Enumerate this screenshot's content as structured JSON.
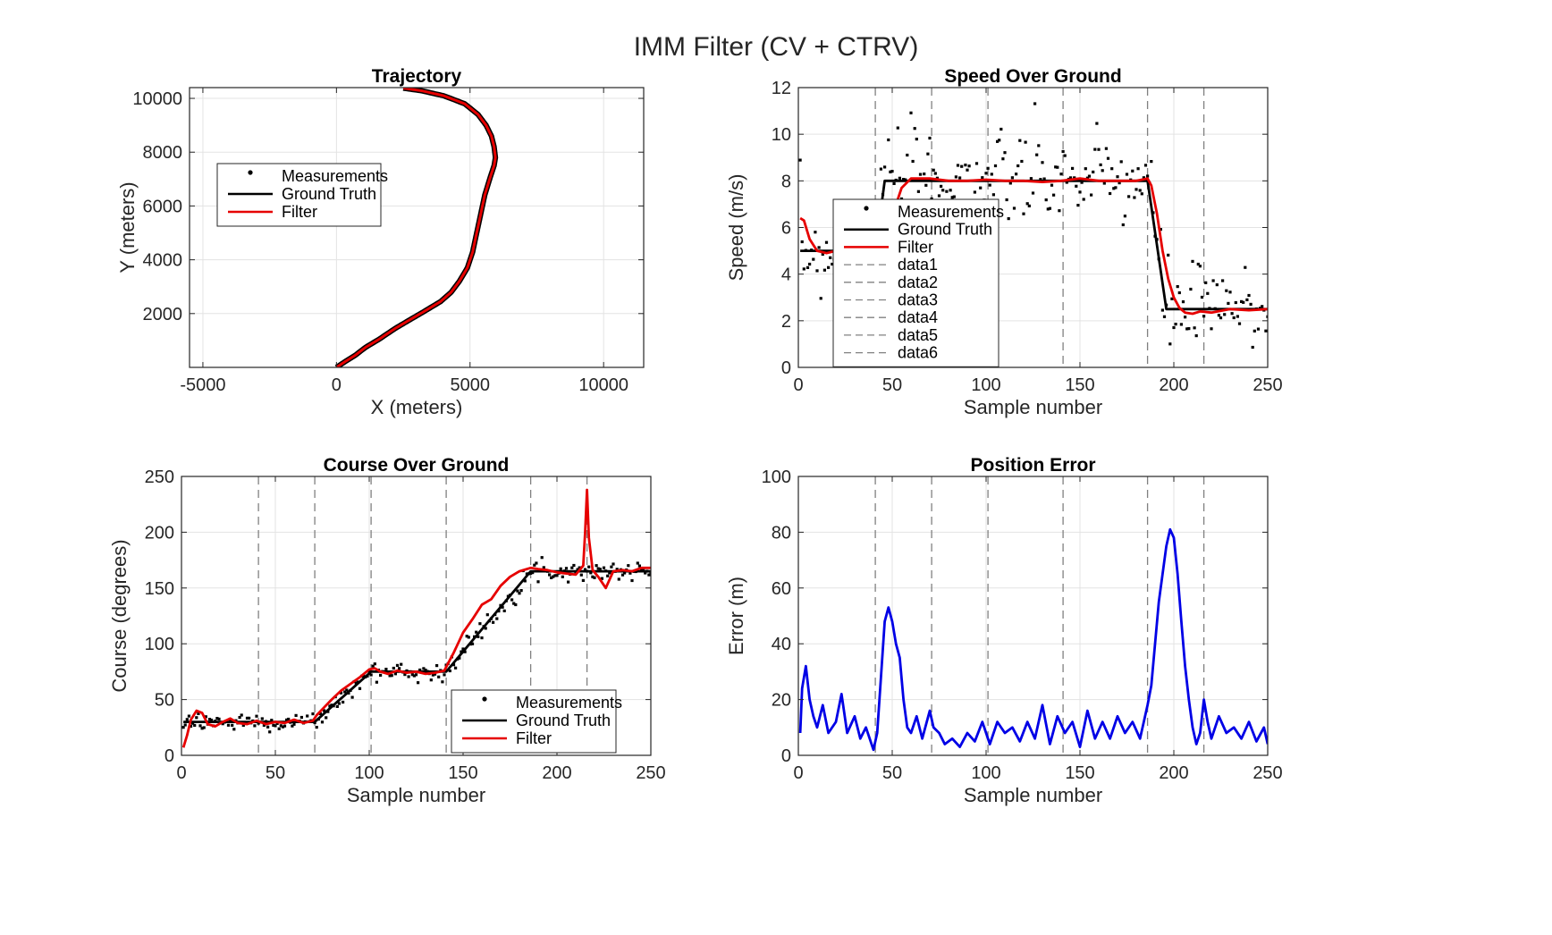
{
  "figure": {
    "title": "IMM Filter (CV + CTRV)"
  },
  "colors": {
    "measurements": "#000000",
    "ground_truth": "#000000",
    "filter": "#e60000",
    "error": "#0000e6",
    "grid": "#e3e3e3",
    "vline": "#808080"
  },
  "chart_data": [
    {
      "id": "trajectory",
      "type": "line",
      "title": "Trajectory",
      "xlabel": "X (meters)",
      "ylabel": "Y (meters)",
      "xlim": [
        -5500,
        11500
      ],
      "ylim": [
        0,
        10400
      ],
      "xticks": [
        -5000,
        0,
        5000,
        10000
      ],
      "yticks": [
        2000,
        4000,
        6000,
        8000,
        10000
      ],
      "grid": true,
      "legend": {
        "position": "upper-left",
        "entries": [
          "Measurements",
          "Ground Truth",
          "Filter"
        ]
      },
      "path_xy": [
        [
          0,
          0
        ],
        [
          300,
          200
        ],
        [
          700,
          450
        ],
        [
          1100,
          750
        ],
        [
          1600,
          1050
        ],
        [
          2200,
          1450
        ],
        [
          2800,
          1800
        ],
        [
          3400,
          2150
        ],
        [
          3900,
          2450
        ],
        [
          4300,
          2800
        ],
        [
          4600,
          3200
        ],
        [
          4900,
          3700
        ],
        [
          5100,
          4300
        ],
        [
          5250,
          5000
        ],
        [
          5400,
          5700
        ],
        [
          5550,
          6400
        ],
        [
          5750,
          7050
        ],
        [
          5900,
          7500
        ],
        [
          5950,
          7800
        ],
        [
          5900,
          8200
        ],
        [
          5800,
          8600
        ],
        [
          5600,
          9000
        ],
        [
          5300,
          9400
        ],
        [
          4800,
          9800
        ],
        [
          4000,
          10100
        ],
        [
          3200,
          10280
        ],
        [
          2500,
          10380
        ]
      ],
      "series": [
        {
          "name": "Measurements",
          "kind": "markers"
        },
        {
          "name": "Ground Truth",
          "kind": "line"
        },
        {
          "name": "Filter",
          "kind": "line"
        }
      ]
    },
    {
      "id": "speed",
      "type": "line",
      "title": "Speed Over Ground",
      "xlabel": "Sample number",
      "ylabel": "Speed (m/s)",
      "xlim": [
        0,
        250
      ],
      "ylim": [
        0,
        12
      ],
      "xticks": [
        0,
        50,
        100,
        150,
        200,
        250
      ],
      "yticks": [
        0,
        2,
        4,
        6,
        8,
        10,
        12
      ],
      "grid": true,
      "vlines": [
        41,
        71,
        101,
        141,
        186,
        216
      ],
      "legend": {
        "position": "left",
        "entries": [
          "Measurements",
          "Ground Truth",
          "Filter",
          "data1",
          "data2",
          "data3",
          "data4",
          "data5",
          "data6"
        ]
      },
      "ground_truth": {
        "x": [
          1,
          41,
          46,
          186,
          196,
          250
        ],
        "y": [
          5,
          5,
          8,
          8,
          2.5,
          2.5
        ]
      },
      "filter": {
        "x": [
          1,
          3,
          6,
          10,
          15,
          20,
          30,
          40,
          45,
          50,
          55,
          60,
          70,
          80,
          90,
          100,
          110,
          120,
          130,
          140,
          150,
          160,
          170,
          180,
          186,
          188,
          191,
          194,
          197,
          200,
          203,
          206,
          210,
          214,
          220,
          230,
          240,
          250
        ],
        "y": [
          6.4,
          6.3,
          5.5,
          5.0,
          4.9,
          5.0,
          5.0,
          5.0,
          5.3,
          6.5,
          7.7,
          8.1,
          8.1,
          8.0,
          8.0,
          8.05,
          8.0,
          8.0,
          7.95,
          8.0,
          8.1,
          8.0,
          8.0,
          8.0,
          8.1,
          7.8,
          6.6,
          5.0,
          3.8,
          3.0,
          2.55,
          2.35,
          2.3,
          2.4,
          2.35,
          2.5,
          2.45,
          2.5
        ]
      },
      "series": [
        {
          "name": "Measurements",
          "kind": "markers"
        },
        {
          "name": "Ground Truth",
          "kind": "line"
        },
        {
          "name": "Filter",
          "kind": "line"
        }
      ]
    },
    {
      "id": "course",
      "type": "line",
      "title": "Course Over Ground",
      "xlabel": "Sample number",
      "ylabel": "Course (degrees)",
      "xlim": [
        0,
        250
      ],
      "ylim": [
        0,
        250
      ],
      "xticks": [
        0,
        50,
        100,
        150,
        200,
        250
      ],
      "yticks": [
        0,
        50,
        100,
        150,
        200,
        250
      ],
      "grid": true,
      "vlines": [
        41,
        71,
        101,
        141,
        186,
        216
      ],
      "legend": {
        "position": "lower-right",
        "entries": [
          "Measurements",
          "Ground Truth",
          "Filter"
        ]
      },
      "ground_truth": {
        "x": [
          1,
          71,
          101,
          141,
          186,
          250
        ],
        "y": [
          30,
          30,
          75,
          75,
          165,
          165
        ]
      },
      "filter": {
        "x": [
          1,
          3,
          5,
          8,
          11,
          14,
          18,
          22,
          26,
          30,
          35,
          40,
          45,
          50,
          55,
          60,
          65,
          70,
          72,
          76,
          80,
          85,
          90,
          95,
          100,
          103,
          106,
          110,
          115,
          120,
          125,
          130,
          135,
          140,
          145,
          150,
          155,
          160,
          165,
          170,
          175,
          180,
          186,
          190,
          195,
          200,
          205,
          210,
          214,
          215,
          216,
          217,
          219,
          222,
          226,
          230,
          235,
          240,
          245,
          250
        ],
        "y": [
          7,
          18,
          32,
          40,
          38,
          28,
          26,
          30,
          33,
          29,
          28,
          31,
          28,
          30,
          29,
          32,
          29,
          31,
          36,
          43,
          50,
          58,
          64,
          70,
          77,
          78,
          75,
          73,
          76,
          74,
          75,
          73,
          74,
          76,
          92,
          110,
          122,
          135,
          140,
          152,
          160,
          165,
          168,
          167,
          166,
          164,
          163,
          162,
          170,
          200,
          238,
          195,
          166,
          160,
          150,
          165,
          166,
          165,
          168,
          168
        ]
      },
      "series": [
        {
          "name": "Measurements",
          "kind": "markers"
        },
        {
          "name": "Ground Truth",
          "kind": "line"
        },
        {
          "name": "Filter",
          "kind": "line"
        }
      ]
    },
    {
      "id": "error",
      "type": "line",
      "title": "Position Error",
      "xlabel": "Sample number",
      "ylabel": "Error (m)",
      "xlim": [
        0,
        250
      ],
      "ylim": [
        0,
        100
      ],
      "xticks": [
        0,
        50,
        100,
        150,
        200,
        250
      ],
      "yticks": [
        0,
        20,
        40,
        60,
        80,
        100
      ],
      "grid": true,
      "vlines": [
        41,
        71,
        101,
        141,
        186,
        216
      ],
      "error": {
        "x": [
          1,
          2,
          4,
          6,
          8,
          10,
          13,
          16,
          20,
          23,
          26,
          30,
          33,
          36,
          40,
          42,
          44,
          46,
          48,
          50,
          52,
          54,
          56,
          58,
          60,
          63,
          66,
          70,
          72,
          75,
          78,
          82,
          86,
          90,
          94,
          98,
          102,
          106,
          110,
          114,
          118,
          122,
          126,
          130,
          134,
          138,
          142,
          146,
          150,
          154,
          158,
          162,
          166,
          170,
          174,
          178,
          182,
          186,
          188,
          190,
          192,
          194,
          196,
          198,
          200,
          202,
          204,
          206,
          208,
          210,
          212,
          214,
          216,
          218,
          220,
          224,
          228,
          232,
          236,
          240,
          244,
          248,
          250
        ],
        "y": [
          8,
          24,
          32,
          20,
          14,
          10,
          18,
          8,
          12,
          22,
          8,
          14,
          6,
          10,
          2,
          8,
          28,
          48,
          53,
          48,
          40,
          35,
          20,
          10,
          8,
          14,
          6,
          16,
          10,
          8,
          4,
          6,
          3,
          8,
          5,
          12,
          4,
          12,
          8,
          10,
          5,
          12,
          6,
          18,
          4,
          14,
          8,
          12,
          3,
          16,
          6,
          12,
          6,
          14,
          8,
          12,
          6,
          18,
          25,
          40,
          55,
          65,
          75,
          81,
          78,
          65,
          48,
          32,
          20,
          10,
          4,
          8,
          20,
          12,
          6,
          14,
          8,
          10,
          6,
          12,
          5,
          10,
          4
        ]
      },
      "series": [
        {
          "name": "Error",
          "kind": "line"
        }
      ]
    }
  ]
}
